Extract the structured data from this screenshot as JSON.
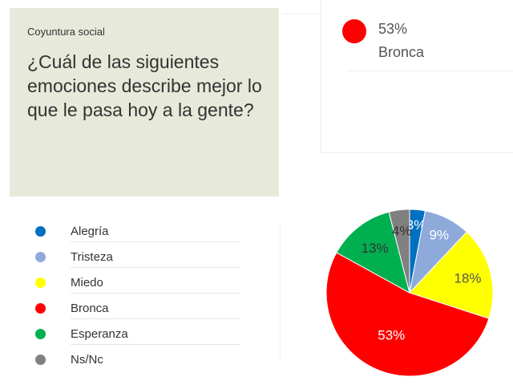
{
  "header": {
    "section_tag": "Coyuntura social",
    "question": "¿Cuál de las siguientes emociones describe mejor lo que le pasa hoy a la gente?"
  },
  "callout": {
    "value": "53%",
    "label": "Bronca",
    "color": "#ff0000"
  },
  "legend": {
    "items": [
      {
        "label": "Alegría",
        "color": "#0070c0"
      },
      {
        "label": "Tristeza",
        "color": "#8eaadb"
      },
      {
        "label": "Miedo",
        "color": "#ffff00"
      },
      {
        "label": "Bronca",
        "color": "#ff0000"
      },
      {
        "label": "Esperanza",
        "color": "#00b050"
      },
      {
        "label": "Ns/Nc",
        "color": "#808080"
      }
    ]
  },
  "chart_data": {
    "type": "pie",
    "categories": [
      "Alegría",
      "Tristeza",
      "Miedo",
      "Bronca",
      "Esperanza",
      "Ns/Nc"
    ],
    "values": [
      3,
      9,
      18,
      53,
      13,
      4
    ],
    "labels": [
      "3%",
      "9%",
      "18%",
      "53%",
      "13%",
      "4%"
    ],
    "colors": [
      "#0070c0",
      "#8eaadb",
      "#ffff00",
      "#ff0000",
      "#00b050",
      "#808080"
    ],
    "label_colors": [
      "#ffffff",
      "#ffffff",
      "#555555",
      "#ffffff",
      "#333333",
      "#333333"
    ],
    "start": "12 o'clock",
    "direction": "clockwise",
    "legend_position": "left"
  }
}
